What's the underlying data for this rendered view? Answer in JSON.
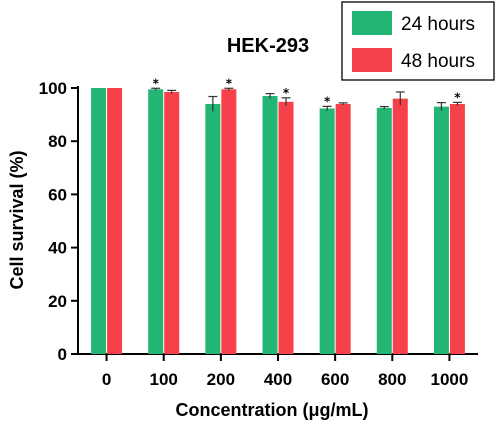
{
  "chart_data": {
    "type": "bar",
    "title": "HEK-293",
    "xlabel": "Concentration (μg/mL)",
    "ylabel": "Cell survival (%)",
    "ylim": [
      0,
      100
    ],
    "yticks": [
      0,
      20,
      40,
      60,
      80,
      100
    ],
    "categories": [
      "0",
      "100",
      "200",
      "400",
      "600",
      "800",
      "1000"
    ],
    "legend_position": "top-right",
    "grid": false,
    "series": [
      {
        "name": "24 hours",
        "color": "#22b573",
        "values": [
          100,
          99.5,
          94,
          97,
          92.3,
          92.5,
          93
        ],
        "errors": [
          0,
          0.4,
          2.8,
          0.9,
          0.8,
          0.5,
          1.5
        ],
        "significance": [
          "",
          "*",
          "",
          "",
          "*",
          "",
          ""
        ]
      },
      {
        "name": "48 hours",
        "color": "#f7414a",
        "values": [
          100,
          98.5,
          99.5,
          94.8,
          94,
          96,
          94
        ],
        "errors": [
          0,
          0.6,
          0.4,
          1.5,
          0.4,
          2.5,
          0.6
        ],
        "significance": [
          "",
          "",
          "*",
          "*",
          "",
          "",
          "*"
        ]
      }
    ]
  }
}
